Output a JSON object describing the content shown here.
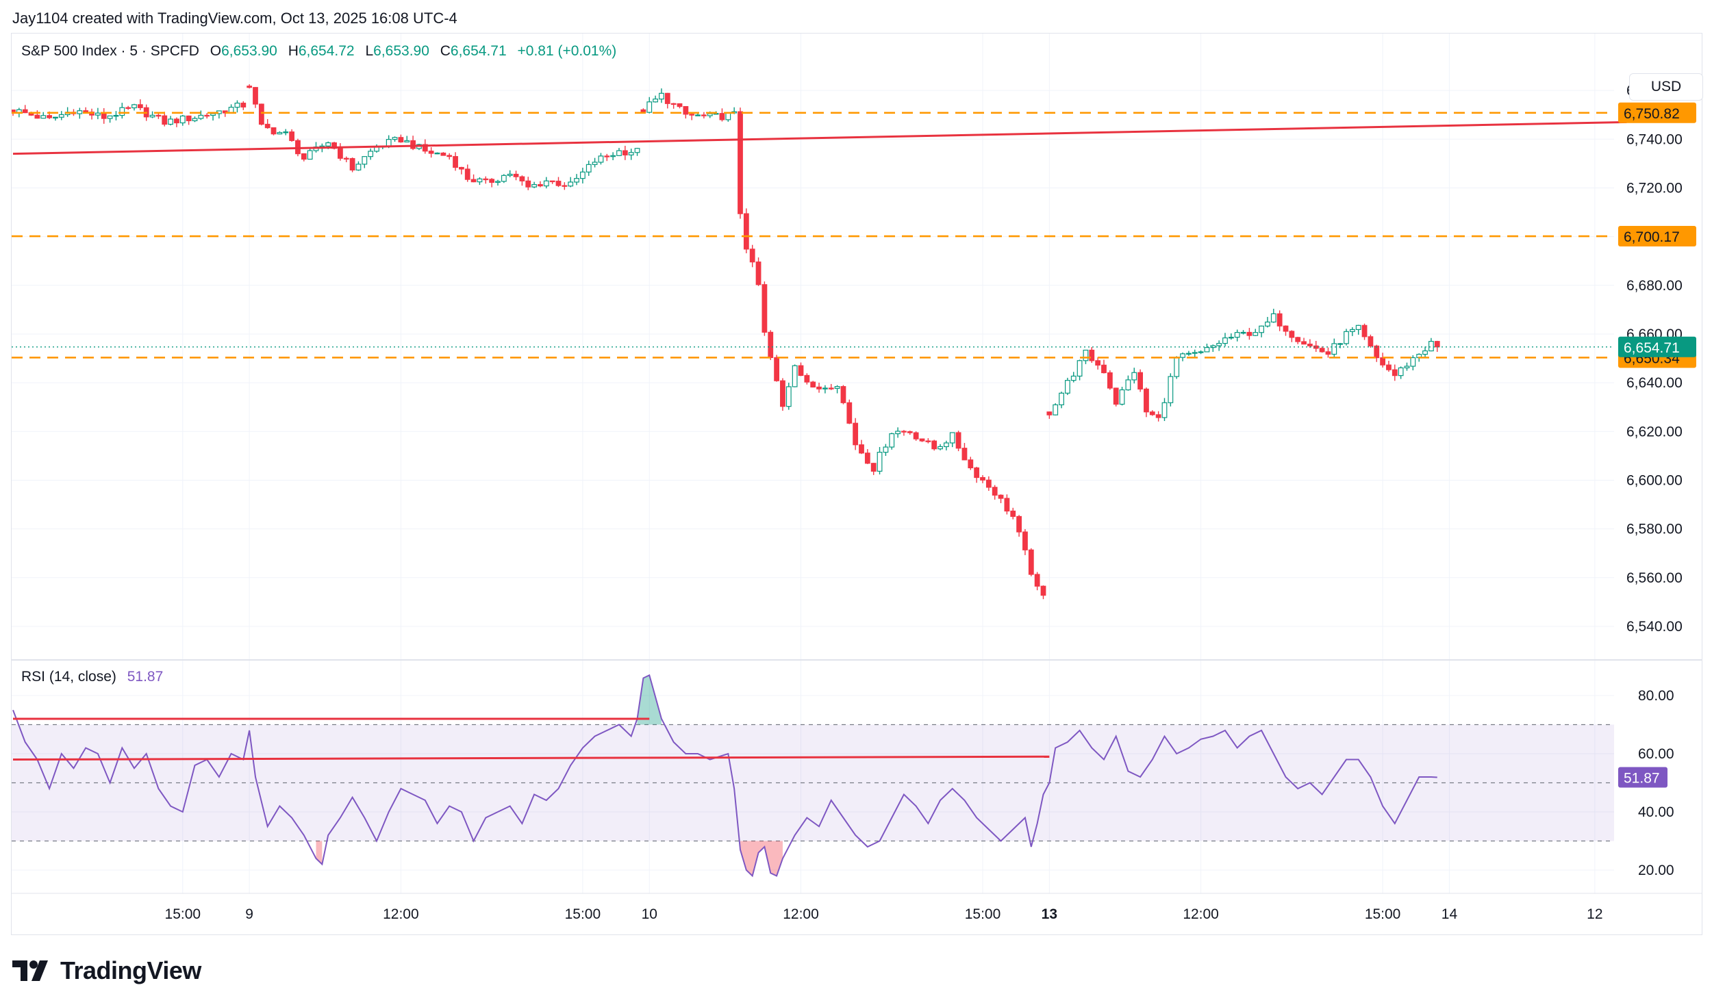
{
  "attribution": "Jay1104 created with TradingView.com, Oct 13, 2025 16:08 UTC-4",
  "brand": "TradingView",
  "currency": "USD",
  "legend": {
    "symbol": "S&P 500 Index · 5 · SPCFD",
    "o_label": "O",
    "o_value": "6,653.90",
    "h_label": "H",
    "h_value": "6,654.72",
    "l_label": "L",
    "l_value": "6,653.90",
    "c_label": "C",
    "c_value": "6,654.71",
    "change": "+0.81 (+0.01%)"
  },
  "rsi_legend": {
    "label": "RSI (14, close)",
    "value": "51.87"
  },
  "colors": {
    "up": "#089981",
    "down": "#f23645",
    "orange": "#ff9800",
    "rsi": "#7e57c2",
    "redline": "#e8323f",
    "grid": "#f0f3fa"
  },
  "chart_data": [
    {
      "type": "candlestick",
      "title": "S&P 500 Index · 5 · SPCFD",
      "price_ticks": [
        6540,
        6560,
        6580,
        6600,
        6620,
        6640,
        6660,
        6680,
        6700,
        6720,
        6740,
        6760
      ],
      "price_tick_labels": [
        "6,540.00",
        "6,560.00",
        "6,580.00",
        "6,600.00",
        "6,620.00",
        "6,640.00",
        "6,660.00",
        "6,680.00",
        "6,700.00",
        "6,720.00",
        "6,740.00",
        "6,760.00"
      ],
      "ylim": [
        6531,
        6771
      ],
      "bar_range": [
        0,
        235
      ],
      "x_ticks": [
        {
          "bar": 28,
          "label": "15:00",
          "bold": false
        },
        {
          "bar": 39,
          "label": "9",
          "bold": false
        },
        {
          "bar": 64,
          "label": "12:00",
          "bold": false
        },
        {
          "bar": 94,
          "label": "15:00",
          "bold": false
        },
        {
          "bar": 105,
          "label": "10",
          "bold": false
        },
        {
          "bar": 130,
          "label": "12:00",
          "bold": false
        },
        {
          "bar": 160,
          "label": "15:00",
          "bold": false
        },
        {
          "bar": 171,
          "label": "13",
          "bold": true
        },
        {
          "bar": 196,
          "label": "12:00",
          "bold": false
        },
        {
          "bar": 226,
          "label": "15:00",
          "bold": false
        },
        {
          "bar": 237,
          "label": "14",
          "bold": false
        },
        {
          "bar": 261,
          "label": "12",
          "bold": false
        }
      ],
      "horizontal_levels": [
        {
          "price": 6750.82,
          "label": "6,750.82"
        },
        {
          "price": 6700.17,
          "label": "6,700.17"
        },
        {
          "price": 6650.34,
          "label": "6,650.34"
        }
      ],
      "last_price": {
        "price": 6654.71,
        "label": "6,654.71"
      },
      "trend_line": {
        "from": {
          "bar": 0,
          "price": 6734
        },
        "to": {
          "bar": 264,
          "price": 6747
        }
      },
      "waypoints": [
        [
          0,
          6752
        ],
        [
          6,
          6748
        ],
        [
          10,
          6752
        ],
        [
          15,
          6749
        ],
        [
          20,
          6753
        ],
        [
          25,
          6747
        ],
        [
          30,
          6749
        ],
        [
          35,
          6752
        ],
        [
          38,
          6754
        ],
        [
          39,
          6762
        ],
        [
          41,
          6745
        ],
        [
          45,
          6742
        ],
        [
          48,
          6732
        ],
        [
          52,
          6739
        ],
        [
          56,
          6728
        ],
        [
          60,
          6737
        ],
        [
          64,
          6740
        ],
        [
          68,
          6735
        ],
        [
          72,
          6733
        ],
        [
          75,
          6724
        ],
        [
          78,
          6722
        ],
        [
          82,
          6726
        ],
        [
          85,
          6720
        ],
        [
          88,
          6723
        ],
        [
          92,
          6721
        ],
        [
          96,
          6731
        ],
        [
          100,
          6735
        ],
        [
          103,
          6735
        ],
        [
          104,
          6752
        ],
        [
          107,
          6758
        ],
        [
          111,
          6750
        ],
        [
          115,
          6749
        ],
        [
          119,
          6750
        ],
        [
          120,
          6710
        ],
        [
          121,
          6696
        ],
        [
          122,
          6688
        ],
        [
          123,
          6680
        ],
        [
          124,
          6660
        ],
        [
          125,
          6650
        ],
        [
          127,
          6630
        ],
        [
          129,
          6648
        ],
        [
          132,
          6637
        ],
        [
          136,
          6640
        ],
        [
          139,
          6615
        ],
        [
          142,
          6605
        ],
        [
          145,
          6620
        ],
        [
          148,
          6620
        ],
        [
          152,
          6613
        ],
        [
          155,
          6618
        ],
        [
          158,
          6605
        ],
        [
          162,
          6595
        ],
        [
          165,
          6585
        ],
        [
          167,
          6570
        ],
        [
          169,
          6555
        ],
        [
          170,
          6552
        ],
        [
          171,
          6628
        ],
        [
          174,
          6640
        ],
        [
          177,
          6652
        ],
        [
          180,
          6645
        ],
        [
          182,
          6632
        ],
        [
          185,
          6645
        ],
        [
          187,
          6628
        ],
        [
          189,
          6625
        ],
        [
          192,
          6650
        ],
        [
          196,
          6652
        ],
        [
          200,
          6658
        ],
        [
          203,
          6660
        ],
        [
          206,
          6662
        ],
        [
          208,
          6667
        ],
        [
          211,
          6660
        ],
        [
          214,
          6655
        ],
        [
          217,
          6652
        ],
        [
          220,
          6660
        ],
        [
          222,
          6662
        ],
        [
          225,
          6650
        ],
        [
          228,
          6643
        ],
        [
          231,
          6650
        ],
        [
          234,
          6656
        ],
        [
          235,
          6654.71
        ]
      ]
    },
    {
      "type": "line",
      "title": "RSI (14, close)",
      "ylim": [
        12,
        92
      ],
      "y_ticks": [
        20,
        40,
        60,
        80
      ],
      "y_tick_labels": [
        "20.00",
        "40.00",
        "60.00",
        "80.00"
      ],
      "band": {
        "upper": 70,
        "middle": 50,
        "lower": 30
      },
      "red_lines": [
        {
          "from": {
            "bar": 0,
            "value": 72
          },
          "to": {
            "bar": 105,
            "value": 72
          }
        },
        {
          "from": {
            "bar": 0,
            "value": 58
          },
          "to": {
            "bar": 171,
            "value": 59
          }
        }
      ],
      "last_value": {
        "value": 51.87,
        "label": "51.87"
      },
      "points": [
        [
          0,
          75
        ],
        [
          2,
          64
        ],
        [
          4,
          58
        ],
        [
          6,
          48
        ],
        [
          8,
          60
        ],
        [
          10,
          55
        ],
        [
          12,
          62
        ],
        [
          14,
          60
        ],
        [
          16,
          50
        ],
        [
          18,
          62
        ],
        [
          20,
          55
        ],
        [
          22,
          60
        ],
        [
          24,
          48
        ],
        [
          26,
          42
        ],
        [
          28,
          40
        ],
        [
          30,
          56
        ],
        [
          32,
          58
        ],
        [
          34,
          52
        ],
        [
          36,
          60
        ],
        [
          38,
          58
        ],
        [
          39,
          68
        ],
        [
          40,
          52
        ],
        [
          42,
          35
        ],
        [
          44,
          42
        ],
        [
          46,
          38
        ],
        [
          48,
          32
        ],
        [
          50,
          24
        ],
        [
          51,
          22
        ],
        [
          52,
          32
        ],
        [
          54,
          38
        ],
        [
          56,
          45
        ],
        [
          58,
          38
        ],
        [
          60,
          30
        ],
        [
          62,
          40
        ],
        [
          64,
          48
        ],
        [
          66,
          46
        ],
        [
          68,
          44
        ],
        [
          70,
          36
        ],
        [
          72,
          42
        ],
        [
          74,
          40
        ],
        [
          76,
          30
        ],
        [
          78,
          38
        ],
        [
          80,
          40
        ],
        [
          82,
          42
        ],
        [
          84,
          36
        ],
        [
          86,
          46
        ],
        [
          88,
          44
        ],
        [
          90,
          48
        ],
        [
          92,
          56
        ],
        [
          94,
          62
        ],
        [
          96,
          66
        ],
        [
          98,
          68
        ],
        [
          100,
          70
        ],
        [
          102,
          66
        ],
        [
          103,
          72
        ],
        [
          104,
          86
        ],
        [
          105,
          87
        ],
        [
          107,
          72
        ],
        [
          109,
          64
        ],
        [
          111,
          60
        ],
        [
          113,
          60
        ],
        [
          115,
          58
        ],
        [
          118,
          60
        ],
        [
          119,
          48
        ],
        [
          120,
          27
        ],
        [
          121,
          20
        ],
        [
          122,
          18
        ],
        [
          123,
          26
        ],
        [
          124,
          28
        ],
        [
          125,
          19
        ],
        [
          126,
          18
        ],
        [
          127,
          24
        ],
        [
          129,
          32
        ],
        [
          131,
          38
        ],
        [
          133,
          35
        ],
        [
          135,
          44
        ],
        [
          137,
          38
        ],
        [
          139,
          32
        ],
        [
          141,
          28
        ],
        [
          143,
          30
        ],
        [
          145,
          38
        ],
        [
          147,
          46
        ],
        [
          149,
          42
        ],
        [
          151,
          36
        ],
        [
          153,
          44
        ],
        [
          155,
          48
        ],
        [
          157,
          44
        ],
        [
          159,
          38
        ],
        [
          161,
          34
        ],
        [
          163,
          30
        ],
        [
          165,
          34
        ],
        [
          167,
          38
        ],
        [
          168,
          28
        ],
        [
          169,
          36
        ],
        [
          170,
          46
        ],
        [
          171,
          50
        ],
        [
          172,
          62
        ],
        [
          174,
          64
        ],
        [
          176,
          68
        ],
        [
          178,
          62
        ],
        [
          180,
          58
        ],
        [
          182,
          66
        ],
        [
          184,
          54
        ],
        [
          186,
          52
        ],
        [
          188,
          58
        ],
        [
          190,
          66
        ],
        [
          192,
          60
        ],
        [
          194,
          62
        ],
        [
          196,
          65
        ],
        [
          198,
          66
        ],
        [
          200,
          68
        ],
        [
          202,
          62
        ],
        [
          204,
          66
        ],
        [
          206,
          68
        ],
        [
          208,
          60
        ],
        [
          210,
          52
        ],
        [
          212,
          48
        ],
        [
          214,
          50
        ],
        [
          216,
          46
        ],
        [
          218,
          52
        ],
        [
          220,
          58
        ],
        [
          222,
          58
        ],
        [
          224,
          52
        ],
        [
          226,
          42
        ],
        [
          228,
          36
        ],
        [
          230,
          44
        ],
        [
          232,
          52
        ],
        [
          234,
          52
        ],
        [
          235,
          51.87
        ]
      ]
    }
  ]
}
